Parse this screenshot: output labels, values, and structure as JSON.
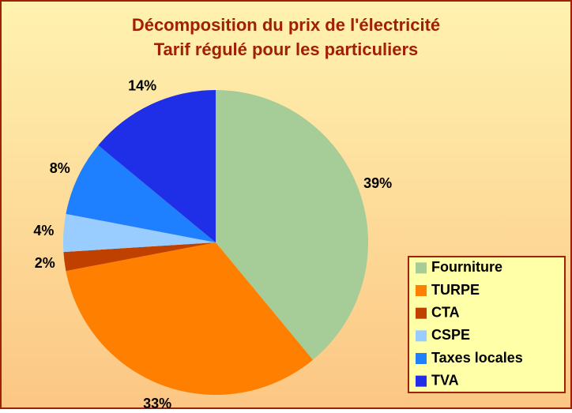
{
  "chart_data": {
    "type": "pie",
    "title": "Décomposition du prix de l'électricité",
    "subtitle": "Tarif régulé pour les particuliers",
    "categories": [
      "Fourniture",
      "TURPE",
      "CTA",
      "CSPE",
      "Taxes locales",
      "TVA"
    ],
    "values": [
      39,
      33,
      2,
      4,
      8,
      14
    ],
    "value_labels": [
      "39%",
      "33%",
      "2%",
      "4%",
      "8%",
      "14%"
    ],
    "colors": [
      "#a6cc98",
      "#ff7f00",
      "#c04000",
      "#99ccff",
      "#1e7fff",
      "#1f2fe8"
    ],
    "legend": "lower right"
  }
}
